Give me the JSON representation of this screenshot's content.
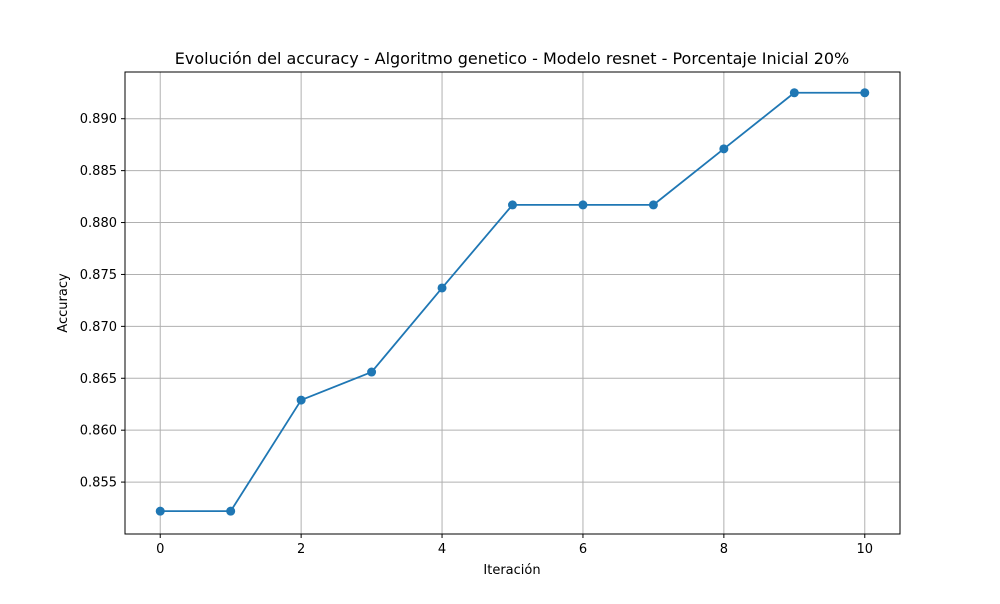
{
  "chart_data": {
    "type": "line",
    "title": "Evolución del accuracy - Algoritmo genetico - Modelo resnet - Porcentaje Inicial 20%",
    "xlabel": "Iteración",
    "ylabel": "Accuracy",
    "x": [
      0,
      1,
      2,
      3,
      4,
      5,
      6,
      7,
      8,
      9,
      10
    ],
    "series": [
      {
        "values": [
          0.8522,
          0.8522,
          0.8629,
          0.8656,
          0.8737,
          0.8817,
          0.8817,
          0.8817,
          0.8871,
          0.8925,
          0.8925
        ],
        "color": "#1f77b4",
        "marker": "circle"
      }
    ],
    "xlim": [
      -0.5,
      10.5
    ],
    "ylim": [
      0.85,
      0.8945
    ],
    "xticks": [
      0,
      2,
      4,
      6,
      8,
      10
    ],
    "xtick_labels": [
      "0",
      "2",
      "4",
      "6",
      "8",
      "10"
    ],
    "yticks": [
      0.855,
      0.86,
      0.865,
      0.87,
      0.875,
      0.88,
      0.885,
      0.89
    ],
    "ytick_labels": [
      "0.855",
      "0.860",
      "0.865",
      "0.870",
      "0.875",
      "0.880",
      "0.885",
      "0.890"
    ],
    "grid": true,
    "legend": "none"
  }
}
